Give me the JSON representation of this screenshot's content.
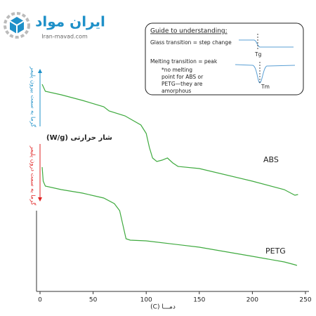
{
  "chart_data": {
    "type": "line",
    "logo": {
      "name": "ایران مواد",
      "url": "Iran-mavad.com"
    },
    "guide": {
      "heading": "Guide to understanding:",
      "glass": "Glass transition = step change",
      "melting": "Melting transition = peak",
      "note": [
        "*no melting",
        "point for ABS or",
        "PETG—they are",
        "amorphous"
      ],
      "tg": "Tg",
      "tm": "Tm"
    },
    "ylabel": "شار حرارتی (W/g)",
    "heat_out": "گرما به سمت بیرون پلیمر",
    "heat_in": "گرما به سمت درون پلیمر",
    "xlabel": "دمـــا (C)",
    "xlim": [
      0,
      250
    ],
    "xticks": [
      0,
      50,
      100,
      150,
      200,
      250
    ],
    "ylim": [
      0,
      315
    ],
    "series": [
      {
        "name": "ABS",
        "color": "#3faa3f",
        "x": [
          2,
          5,
          20,
          40,
          60,
          65,
          80,
          95,
          100,
          103,
          106,
          110,
          115,
          120,
          125,
          130,
          150,
          200,
          230,
          240,
          243
        ],
        "values": [
          295,
          285,
          280,
          272,
          263,
          257,
          250,
          237,
          225,
          205,
          190,
          185,
          187,
          190,
          183,
          178,
          175,
          157,
          145,
          137,
          138
        ]
      },
      {
        "name": "PETG",
        "color": "#3faa3f",
        "x": [
          2,
          3,
          5,
          20,
          40,
          60,
          70,
          75,
          78,
          81,
          85,
          100,
          150,
          200,
          230,
          240,
          242
        ],
        "values": [
          177,
          157,
          150,
          145,
          140,
          133,
          125,
          115,
          95,
          75,
          73,
          72,
          63,
          50,
          42,
          38,
          37
        ]
      }
    ]
  }
}
